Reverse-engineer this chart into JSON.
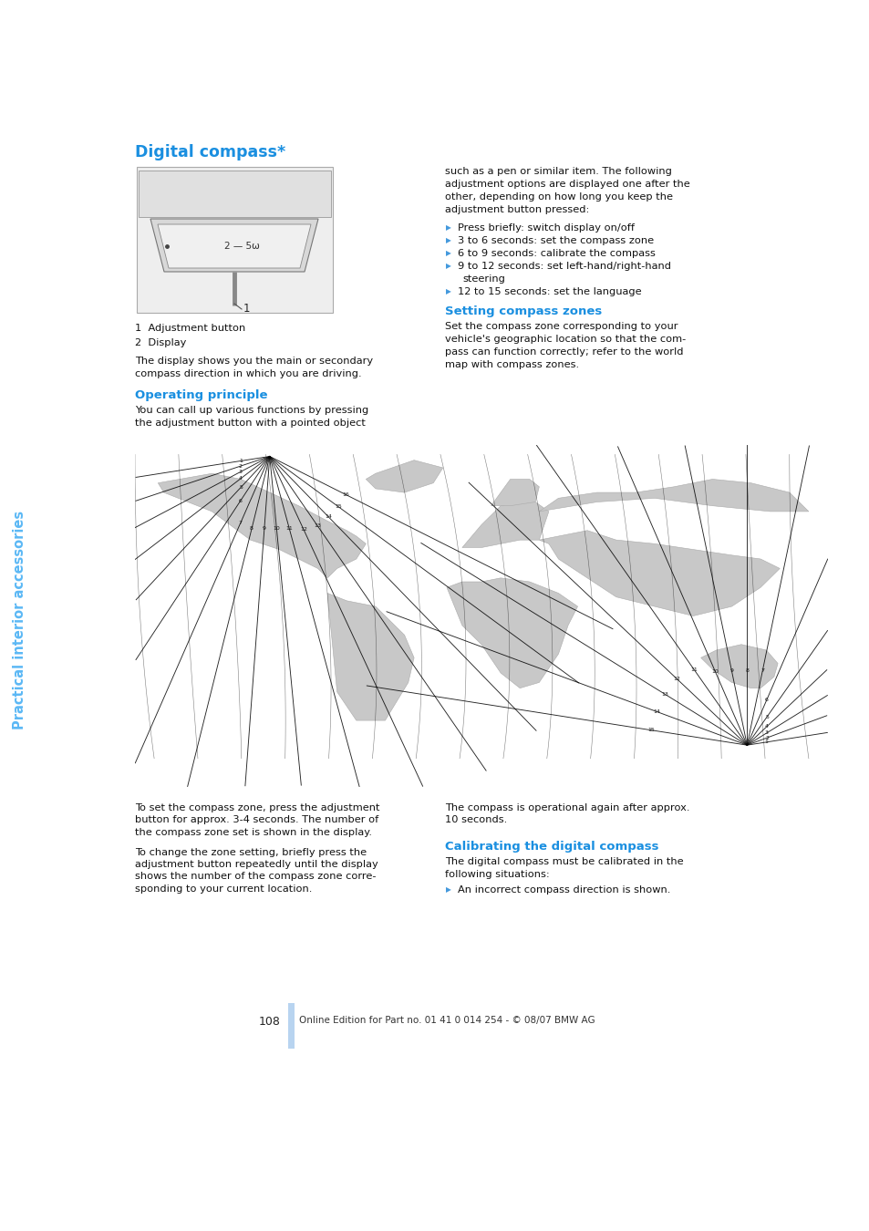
{
  "page_bg": "#ffffff",
  "sidebar_color": "#5bb8f5",
  "sidebar_text": "Practical interior accessories",
  "title": "Digital compass*",
  "title_color": "#1a8fe0",
  "section_color": "#1a8fe0",
  "body_font_size": 8.2,
  "title_font_size": 12.5,
  "section_font_size": 9.5,
  "label1_num": "1",
  "label1_text": "Adjustment button",
  "label2_num": "2",
  "label2_text": "Display",
  "desc1_line1": "The display shows you the main or secondary",
  "desc1_line2": "compass direction in which you are driving.",
  "op_principle_title": "Operating principle",
  "op_principle_line1": "You can call up various functions by pressing",
  "op_principle_line2": "the adjustment button with a pointed object",
  "right_col_lines": [
    "such as a pen or similar item. The following",
    "adjustment options are displayed one after the",
    "other, depending on how long you keep the",
    "adjustment button pressed:"
  ],
  "bullets": [
    "Press briefly: switch display on/off",
    "3 to 6 seconds: set the compass zone",
    "6 to 9 seconds: calibrate the compass",
    "9 to 12 seconds: set left-hand/right-hand",
    "steering",
    "12 to 15 seconds: set the language"
  ],
  "bullet_indent_flags": [
    false,
    false,
    false,
    false,
    true,
    false
  ],
  "setting_zones_title": "Setting compass zones",
  "setting_zones_lines": [
    "Set the compass zone corresponding to your",
    "vehicle's geographic location so that the com-",
    "pass can function correctly; refer to the world",
    "map with compass zones."
  ],
  "bottom_left_lines": [
    "To set the compass zone, press the adjustment",
    "button for approx. 3-4 seconds. The number of",
    "the compass zone set is shown in the display.",
    "",
    "To change the zone setting, briefly press the",
    "adjustment button repeatedly until the display",
    "shows the number of the compass zone corre-",
    "sponding to your current location."
  ],
  "bottom_right_lines": [
    "The compass is operational again after approx.",
    "10 seconds."
  ],
  "calib_title": "Calibrating the digital compass",
  "calib_lines": [
    "The digital compass must be calibrated in the",
    "following situations:"
  ],
  "calib_bullet": "An incorrect compass direction is shown.",
  "page_number": "108",
  "footer_text": "Online Edition for Part no. 01 41 0 014 254 - © 08/07 BMW AG",
  "footer_bar_color": "#b8d4f0"
}
